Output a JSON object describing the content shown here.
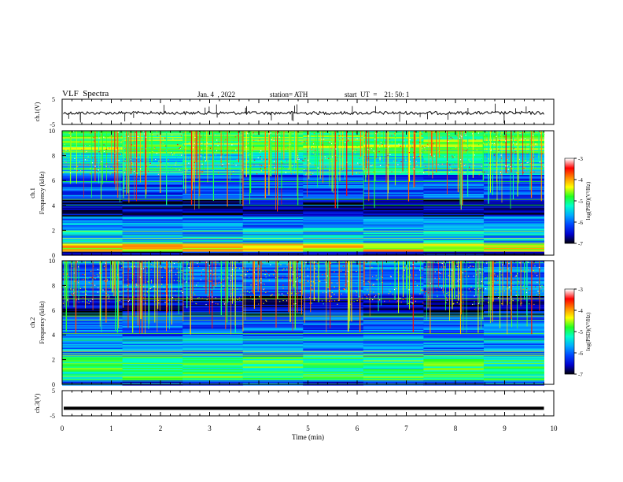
{
  "header": {
    "title": "VLF  Spectra",
    "date": "Jan. 4  , 2022",
    "station": "station= ATH",
    "start": "start  UT  =    21: 50: 1"
  },
  "chart_data": [
    {
      "type": "line",
      "panel": "ch1-waveform",
      "ylabel": "ch.1(V)",
      "ylim": [
        -5,
        5
      ],
      "yticks": [
        "5",
        "-5"
      ],
      "xlim": [
        0,
        10
      ],
      "values_note": "",
      "trace_level": -0.3
    },
    {
      "type": "heatmap",
      "panel": "ch1-spectrogram",
      "ylabel": "ch.1\nFrequency  (kHz)",
      "ylabel_line1": "ch.1",
      "ylabel_line2": "Frequency  (kHz)",
      "ylim": [
        0,
        10
      ],
      "yticks": [
        "0",
        "2",
        "4",
        "6",
        "8",
        "10"
      ],
      "xlim": [
        0,
        9.8
      ],
      "colorbar": {
        "label": "log(PSD)(V²/Hz)",
        "range": [
          -7,
          -3
        ],
        "ticks": [
          "-3",
          "-4",
          "-5",
          "-6",
          "-7"
        ]
      },
      "bands_log_psd": [
        {
          "f": [
            0,
            0.3
          ],
          "v": -6.5
        },
        {
          "f": [
            0.3,
            1.0
          ],
          "v": -4.2
        },
        {
          "f": [
            1.0,
            2.3
          ],
          "v": -5.6
        },
        {
          "f": [
            2.3,
            3.2
          ],
          "v": -5.9
        },
        {
          "f": [
            3.2,
            4.6
          ],
          "v": -6.7
        },
        {
          "f": [
            4.6,
            6.5
          ],
          "v": -6.1
        },
        {
          "f": [
            6.5,
            8.2
          ],
          "v": -5.4
        },
        {
          "f": [
            8.2,
            10.0
          ],
          "v": -4.8
        }
      ]
    },
    {
      "type": "heatmap",
      "panel": "ch2-spectrogram",
      "ylabel": "ch.2\nFrequency  (kHz)",
      "ylabel_line1": "ch.2",
      "ylabel_line2": "Frequency  (kHz)",
      "ylim": [
        0,
        10
      ],
      "yticks": [
        "0",
        "2",
        "4",
        "6",
        "8",
        "10"
      ],
      "xlim": [
        0,
        9.8
      ],
      "colorbar": {
        "label": "log(PSD)(V²/Hz)",
        "range": [
          -7,
          -3
        ],
        "ticks": [
          "-3",
          "-4",
          "-5",
          "-6",
          "-7"
        ]
      },
      "bands_log_psd": [
        {
          "f": [
            0,
            0.4
          ],
          "v": -6.2
        },
        {
          "f": [
            0.4,
            2.3
          ],
          "v": -5.0
        },
        {
          "f": [
            2.3,
            3.8
          ],
          "v": -5.8
        },
        {
          "f": [
            3.8,
            5.6
          ],
          "v": -6.0
        },
        {
          "f": [
            5.6,
            7.2
          ],
          "v": -6.6
        },
        {
          "f": [
            7.2,
            10.0
          ],
          "v": -6.0
        }
      ]
    },
    {
      "type": "line",
      "panel": "ch3-waveform",
      "ylabel": "ch.3(V)",
      "ylim": [
        -5,
        5
      ],
      "yticks": [
        "5",
        "-5"
      ],
      "xlim": [
        0,
        10
      ],
      "trace_level": -2,
      "xlabel": "Time  (min)",
      "xticks": [
        "0",
        "1",
        "2",
        "3",
        "4",
        "5",
        "6",
        "7",
        "8",
        "9",
        "10"
      ]
    }
  ],
  "colors": {
    "cmap": [
      "#000000",
      "#0000cc",
      "#0044ff",
      "#00aaff",
      "#00ffcc",
      "#22ff22",
      "#ffff00",
      "#ff8800",
      "#ff0000",
      "#ffffff"
    ]
  }
}
